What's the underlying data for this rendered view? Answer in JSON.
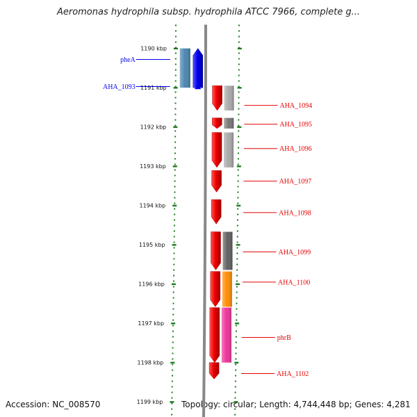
{
  "title": "Aeromonas hydrophila subsp. hydrophila ATCC 7966, complete g...",
  "accession": "Accession: NC_008570",
  "summary": "Topology: circular; Length: 4,744,448 bp; Genes: 4,281",
  "ruler": {
    "start_kbp": 1189.75,
    "end_kbp": 1199.2,
    "ticks": [
      {
        "kbp": 1190,
        "label": "1190 kbp"
      },
      {
        "kbp": 1191,
        "label": "1191 kbp"
      },
      {
        "kbp": 1192,
        "label": "1192 kbp"
      },
      {
        "kbp": 1193,
        "label": "1193 kbp"
      },
      {
        "kbp": 1194,
        "label": "1194 kbp"
      },
      {
        "kbp": 1195,
        "label": "1195 kbp"
      },
      {
        "kbp": 1196,
        "label": "1196 kbp"
      },
      {
        "kbp": 1197,
        "label": "1197 kbp"
      },
      {
        "kbp": 1198,
        "label": "1198 kbp"
      },
      {
        "kbp": 1199,
        "label": "1199 kbp"
      }
    ]
  },
  "colors": {
    "forward": "#e60000",
    "reverse": "#0000ee",
    "backbone": "#888888",
    "ruler": "#1a7a1a"
  },
  "genes": [
    {
      "name": "pheA",
      "strand": "reverse",
      "start_kbp": 1190.0,
      "end_kbp": 1191.0,
      "feature_color": "#4a86b0",
      "label_kbp": 1190.28
    },
    {
      "name": "AHA_1093",
      "strand": "reverse",
      "start_kbp": 1190.97,
      "end_kbp": 1191.02,
      "feature_color": "",
      "label_kbp": 1190.97
    },
    {
      "name": "AHA_1094",
      "strand": "forward",
      "start_kbp": 1190.95,
      "end_kbp": 1191.58,
      "feature_color": "#a8a8a8",
      "label_kbp": 1191.45
    },
    {
      "name": "AHA_1095",
      "strand": "forward",
      "start_kbp": 1191.77,
      "end_kbp": 1192.04,
      "feature_color": "#777777",
      "label_kbp": 1191.93
    },
    {
      "name": "AHA_1096",
      "strand": "forward",
      "start_kbp": 1192.14,
      "end_kbp": 1193.03,
      "feature_color": "#a8a8a8",
      "label_kbp": 1192.55
    },
    {
      "name": "AHA_1097",
      "strand": "forward",
      "start_kbp": 1193.11,
      "end_kbp": 1193.66,
      "feature_color": "",
      "label_kbp": 1193.38
    },
    {
      "name": "AHA_1098",
      "strand": "forward",
      "start_kbp": 1193.85,
      "end_kbp": 1194.47,
      "feature_color": "",
      "label_kbp": 1194.18
    },
    {
      "name": "AHA_1099",
      "strand": "forward",
      "start_kbp": 1194.67,
      "end_kbp": 1195.64,
      "feature_color": "#606060",
      "label_kbp": 1195.18
    },
    {
      "name": "AHA_1100",
      "strand": "forward",
      "start_kbp": 1195.68,
      "end_kbp": 1196.58,
      "feature_color": "#ff8c00",
      "label_kbp": 1195.95
    },
    {
      "name": "phrB",
      "strand": "forward",
      "start_kbp": 1196.6,
      "end_kbp": 1198.0,
      "feature_color": "#ee3399",
      "label_kbp": 1197.36
    },
    {
      "name": "AHA_1102",
      "strand": "forward",
      "start_kbp": 1198.0,
      "end_kbp": 1198.42,
      "feature_color": "",
      "label_kbp": 1198.28
    }
  ]
}
